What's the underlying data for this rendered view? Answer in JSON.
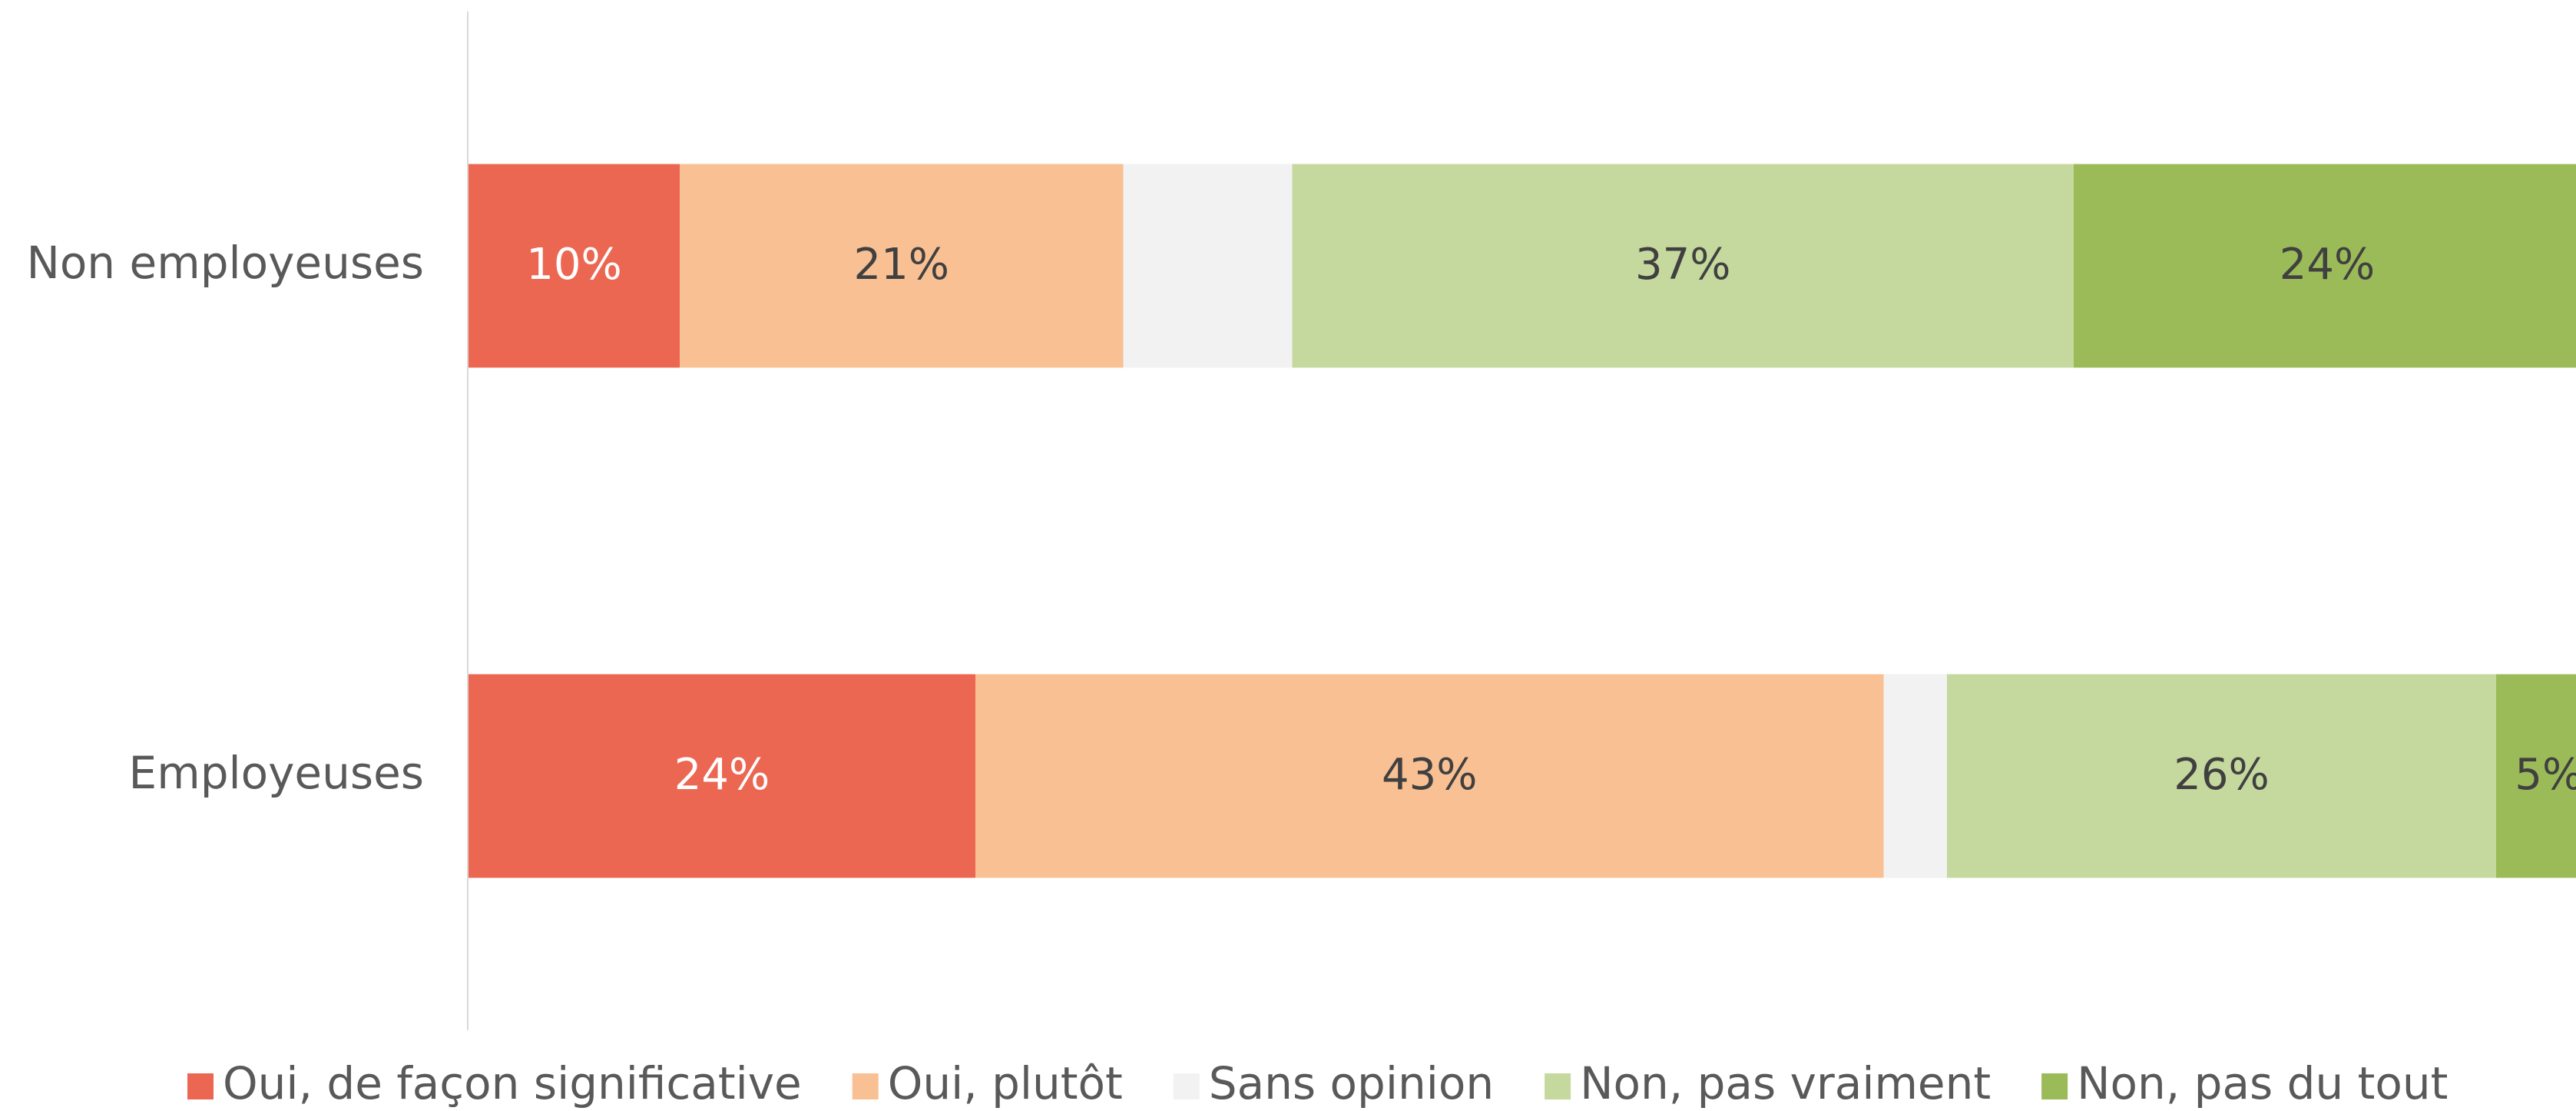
{
  "chart_data": {
    "type": "stacked-bar-horizontal",
    "categories": [
      "Non employeuses",
      "Employeuses"
    ],
    "series": [
      {
        "name": "Oui, de façon significative",
        "color": "#ec6752",
        "label_color": "#ffffff",
        "values": [
          10,
          24
        ],
        "value_labels": [
          "10%",
          "24%"
        ]
      },
      {
        "name": "Oui, plutôt",
        "color": "#f9c093",
        "label_color": "#404040",
        "values": [
          21,
          43
        ],
        "value_labels": [
          "21%",
          "43%"
        ]
      },
      {
        "name": "Sans opinion",
        "color": "#f2f2f2",
        "label_color": "#404040",
        "values": [
          8,
          3
        ],
        "value_labels": [
          null,
          null
        ]
      },
      {
        "name": "Non, pas vraiment",
        "color": "#c5d89d",
        "label_color": "#404040",
        "values": [
          37,
          26
        ],
        "value_labels": [
          "37%",
          "26%"
        ]
      },
      {
        "name": "Non, pas du tout",
        "color": "#9bbb59",
        "label_color": "#404040",
        "values": [
          24,
          5
        ],
        "value_labels": [
          "24%",
          "5%"
        ]
      }
    ],
    "legend": "bottom"
  }
}
